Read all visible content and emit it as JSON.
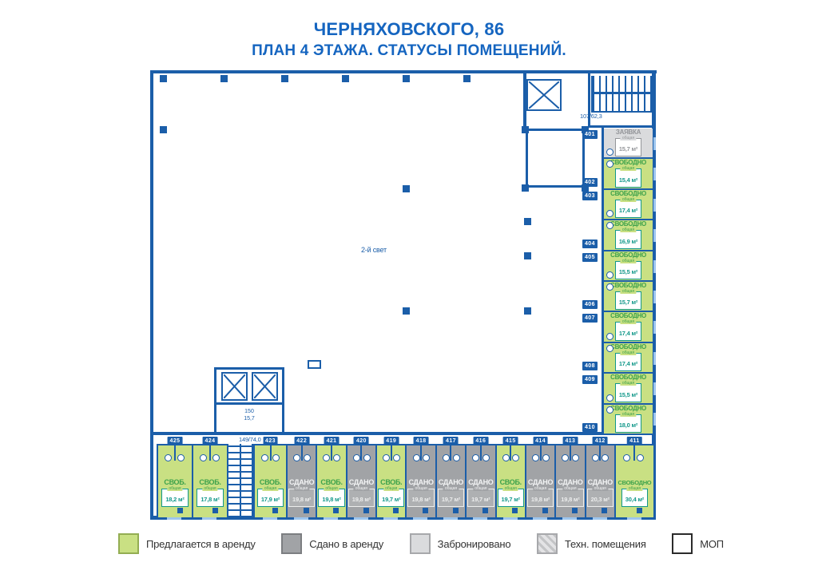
{
  "title": {
    "line1": "ЧЕРНЯХОВСКОГО, 86",
    "line2": "ПЛАН 4 ЭТАЖА. СТАТУСЫ ПОМЕЩЕНИЙ."
  },
  "annotations": {
    "second_light": "2-й свет",
    "top_right_dim": "107/62,3",
    "bottom_left_dim": "149/74,0",
    "room_150_number": "150",
    "room_150_area": "15,7",
    "area_caption": "общая"
  },
  "plan": {
    "right_rooms": [
      {
        "number": "401",
        "status": "ЗАЯВКА",
        "area": "15,7 м²",
        "state": "reserved"
      },
      {
        "number": "402",
        "status": "СВОБОДНО",
        "area": "15,4 м²",
        "state": "free"
      },
      {
        "number": "403",
        "status": "СВОБОДНО",
        "area": "17,4 м²",
        "state": "free"
      },
      {
        "number": "404",
        "status": "СВОБОДНО",
        "area": "16,9 м²",
        "state": "free"
      },
      {
        "number": "405",
        "status": "СВОБОДНО",
        "area": "15,5 м²",
        "state": "free"
      },
      {
        "number": "406",
        "status": "СВОБОДНО",
        "area": "15,7 м²",
        "state": "free"
      },
      {
        "number": "407",
        "status": "СВОБОДНО",
        "area": "17,4 м²",
        "state": "free"
      },
      {
        "number": "408",
        "status": "СВОБОДНО",
        "area": "17,4 м²",
        "state": "free"
      },
      {
        "number": "409",
        "status": "СВОБОДНО",
        "area": "15,5 м²",
        "state": "free"
      },
      {
        "number": "410",
        "status": "СВОБОДНО",
        "area": "18,0 м²",
        "state": "free"
      }
    ],
    "bottom_rooms": [
      {
        "number": "425",
        "status": "СВОБ.",
        "area": "18,2 м²",
        "state": "free"
      },
      {
        "number": "424",
        "status": "СВОБ.",
        "area": "17,8 м²",
        "state": "free"
      },
      {
        "number": "423",
        "status": "СВОБ.",
        "area": "17,9 м²",
        "state": "free"
      },
      {
        "number": "422",
        "status": "СДАНО",
        "area": "19,8 м²",
        "state": "rented"
      },
      {
        "number": "421",
        "status": "СВОБ.",
        "area": "19,8 м²",
        "state": "free"
      },
      {
        "number": "420",
        "status": "СДАНО",
        "area": "19,8 м²",
        "state": "rented"
      },
      {
        "number": "419",
        "status": "СВОБ.",
        "area": "19,7 м²",
        "state": "free"
      },
      {
        "number": "418",
        "status": "СДАНО",
        "area": "19,8 м²",
        "state": "rented"
      },
      {
        "number": "417",
        "status": "СДАНО",
        "area": "19,7 м²",
        "state": "rented"
      },
      {
        "number": "416",
        "status": "СДАНО",
        "area": "19,7 м²",
        "state": "rented"
      },
      {
        "number": "415",
        "status": "СВОБ.",
        "area": "19,7 м²",
        "state": "free"
      },
      {
        "number": "414",
        "status": "СДАНО",
        "area": "19,8 м²",
        "state": "rented"
      },
      {
        "number": "413",
        "status": "СДАНО",
        "area": "19,8 м²",
        "state": "rented"
      },
      {
        "number": "412",
        "status": "СДАНО",
        "area": "20,3 м²",
        "state": "rented"
      },
      {
        "number": "411",
        "status": "СВОБОДНО",
        "area": "30,4 м²",
        "state": "free"
      }
    ]
  },
  "legend": [
    {
      "label": "Предлагается в аренду",
      "type": "free"
    },
    {
      "label": "Сдано в аренду",
      "type": "rented"
    },
    {
      "label": "Забронировано",
      "type": "reserved"
    },
    {
      "label": "Техн. помещения",
      "type": "tech"
    },
    {
      "label": "МОП",
      "type": "mop"
    }
  ],
  "colors": {
    "wall": "#1b5ea9",
    "title": "#1565c0",
    "free_fill": "#c9e083",
    "free_label": "#3da24b",
    "free_value": "#12988a",
    "rented_fill": "#a1a3a6",
    "reserved_fill": "#dadbdd",
    "mop_fill": "#ffffff"
  }
}
